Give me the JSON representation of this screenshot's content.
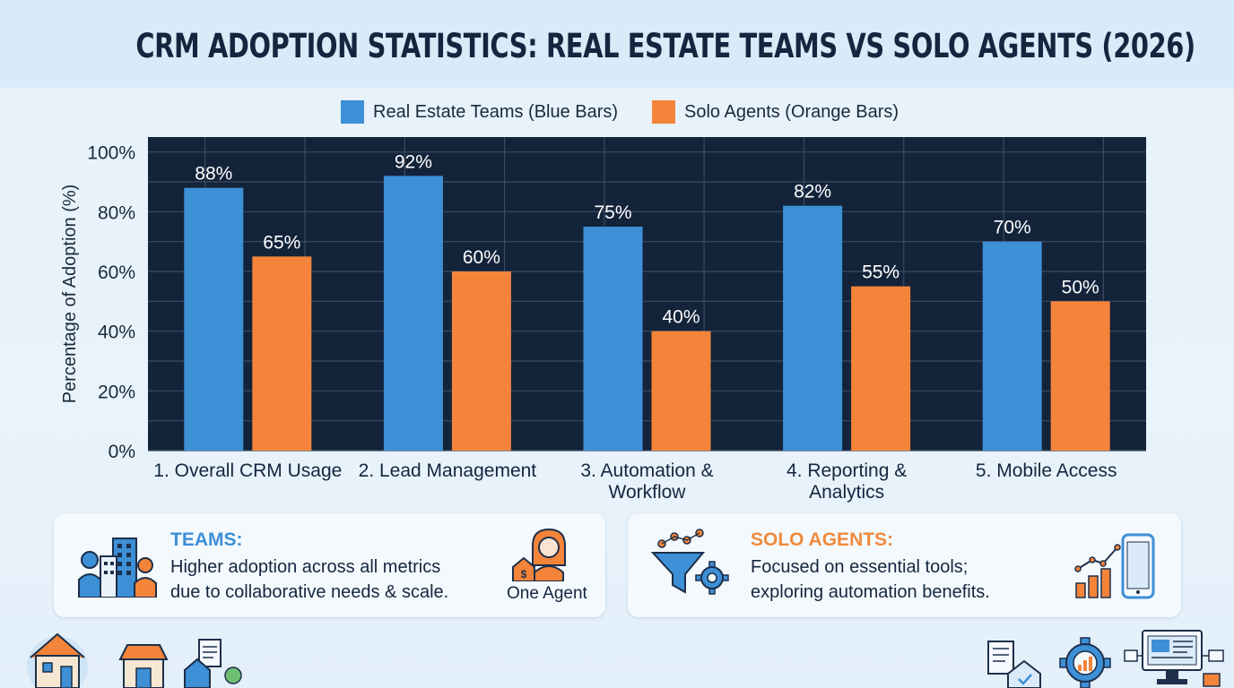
{
  "chart_data": {
    "type": "bar",
    "title": "CRM ADOPTION STATISTICS: REAL ESTATE TEAMS VS SOLO AGENTS (2026)",
    "ylabel": "Percentage of Adoption (%)",
    "xlabel": "",
    "ylim": [
      0,
      105
    ],
    "yticks": [
      0,
      20,
      40,
      60,
      80,
      100
    ],
    "ytick_labels": [
      "0%",
      "20%",
      "40%",
      "60%",
      "80%",
      "100%"
    ],
    "grid": true,
    "legend_position": "top-center",
    "categories": [
      "1. Overall CRM Usage",
      "2. Lead Management",
      "3. Automation & Workflow",
      "4. Reporting & Analytics",
      "5. Mobile Access"
    ],
    "category_lines": [
      [
        "1. Overall CRM Usage"
      ],
      [
        "2. Lead Management"
      ],
      [
        "3. Automation &",
        "Workflow"
      ],
      [
        "4. Reporting &",
        "Analytics"
      ],
      [
        "5. Mobile Access"
      ]
    ],
    "series": [
      {
        "name": "Real Estate Teams (Blue Bars)",
        "color": "#3d8fd6",
        "values": [
          88,
          92,
          75,
          82,
          70
        ],
        "labels": [
          "88%",
          "92%",
          "75%",
          "82%",
          "70%"
        ]
      },
      {
        "name": "Solo Agents (Orange Bars)",
        "color": "#f4843a",
        "values": [
          65,
          60,
          40,
          55,
          50
        ],
        "labels": [
          "65%",
          "60%",
          "40%",
          "55%",
          "50%"
        ]
      }
    ],
    "plot_background": "#13233a"
  },
  "cards": {
    "teams": {
      "title": "TEAMS:",
      "title_color": "#3d8fd6",
      "line1": "Higher adoption across all metrics",
      "line2": "due to collaborative needs & scale.",
      "caption": "One Agent",
      "icons": [
        "team-building-icon",
        "solo-agent-icon"
      ]
    },
    "solo": {
      "title": "SOLO AGENTS:",
      "title_color": "#f08a3c",
      "line1": "Focused on essential tools;",
      "line2": "exploring automation benefits.",
      "icons": [
        "funnel-gear-icon",
        "mobile-growth-icon"
      ]
    }
  },
  "decor_icons": [
    "house-icon",
    "shop-icon",
    "document-house-icon",
    "checklist-house-icon",
    "gear-chart-icon",
    "desktop-network-icon"
  ]
}
